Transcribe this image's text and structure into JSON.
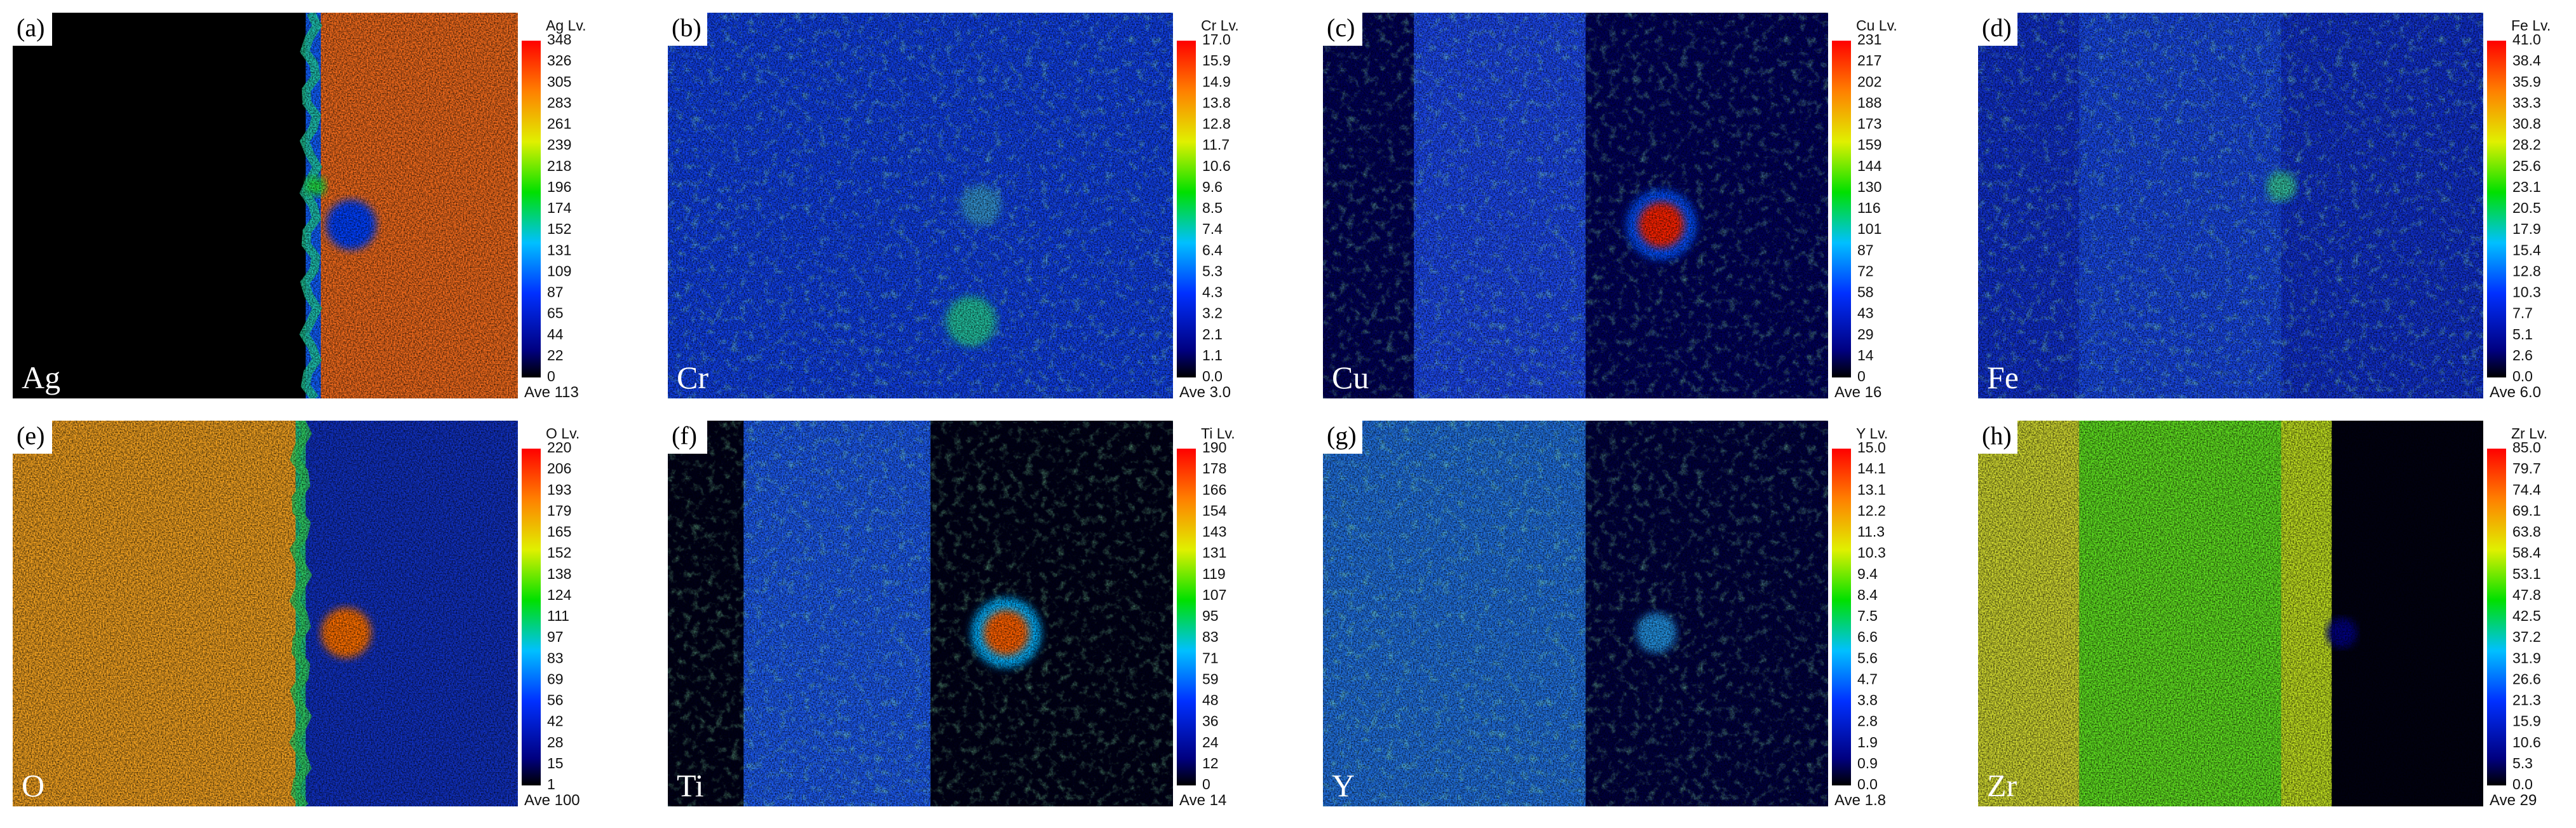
{
  "panels": [
    {
      "label": "(a)",
      "element": "Ag",
      "scale_title": "Ag Lv.",
      "scale": [
        "348",
        "326",
        "305",
        "283",
        "261",
        "239",
        "218",
        "196",
        "174",
        "152",
        "131",
        "109",
        "87",
        "65",
        "44",
        "22",
        "0"
      ],
      "average": "Ave 113"
    },
    {
      "label": "(b)",
      "element": "Cr",
      "scale_title": "Cr Lv.",
      "scale": [
        "17.0",
        "15.9",
        "14.9",
        "13.8",
        "12.8",
        "11.7",
        "10.6",
        "9.6",
        "8.5",
        "7.4",
        "6.4",
        "5.3",
        "4.3",
        "3.2",
        "2.1",
        "1.1",
        "0.0"
      ],
      "average": "Ave 3.0"
    },
    {
      "label": "(c)",
      "element": "Cu",
      "scale_title": "Cu Lv.",
      "scale": [
        "231",
        "217",
        "202",
        "188",
        "173",
        "159",
        "144",
        "130",
        "116",
        "101",
        "87",
        "72",
        "58",
        "43",
        "29",
        "14",
        "0"
      ],
      "average": "Ave 16"
    },
    {
      "label": "(d)",
      "element": "Fe",
      "scale_title": "Fe Lv.",
      "scale": [
        "41.0",
        "38.4",
        "35.9",
        "33.3",
        "30.8",
        "28.2",
        "25.6",
        "23.1",
        "20.5",
        "17.9",
        "15.4",
        "12.8",
        "10.3",
        "7.7",
        "5.1",
        "2.6",
        "0.0"
      ],
      "average": "Ave 6.0"
    },
    {
      "label": "(e)",
      "element": "O",
      "scale_title": "O Lv.",
      "scale": [
        "220",
        "206",
        "193",
        "179",
        "165",
        "152",
        "138",
        "124",
        "111",
        "97",
        "83",
        "69",
        "56",
        "42",
        "28",
        "15",
        "1"
      ],
      "average": "Ave 100"
    },
    {
      "label": "(f)",
      "element": "Ti",
      "scale_title": "Ti Lv.",
      "scale": [
        "190",
        "178",
        "166",
        "154",
        "143",
        "131",
        "119",
        "107",
        "95",
        "83",
        "71",
        "59",
        "48",
        "36",
        "24",
        "12",
        "0"
      ],
      "average": "Ave 14"
    },
    {
      "label": "(g)",
      "element": "Y",
      "scale_title": "Y Lv.",
      "scale": [
        "15.0",
        "14.1",
        "13.1",
        "12.2",
        "11.3",
        "10.3",
        "9.4",
        "8.4",
        "7.5",
        "6.6",
        "5.6",
        "4.7",
        "3.8",
        "2.8",
        "1.9",
        "0.9",
        "0.0"
      ],
      "average": "Ave 1.8"
    },
    {
      "label": "(h)",
      "element": "Zr",
      "scale_title": "Zr Lv.",
      "scale": [
        "85.0",
        "79.7",
        "74.4",
        "69.1",
        "63.8",
        "58.4",
        "53.1",
        "47.8",
        "42.5",
        "37.2",
        "31.9",
        "26.6",
        "21.3",
        "15.9",
        "10.6",
        "5.3",
        "0.0"
      ],
      "average": "Ave 29"
    }
  ]
}
